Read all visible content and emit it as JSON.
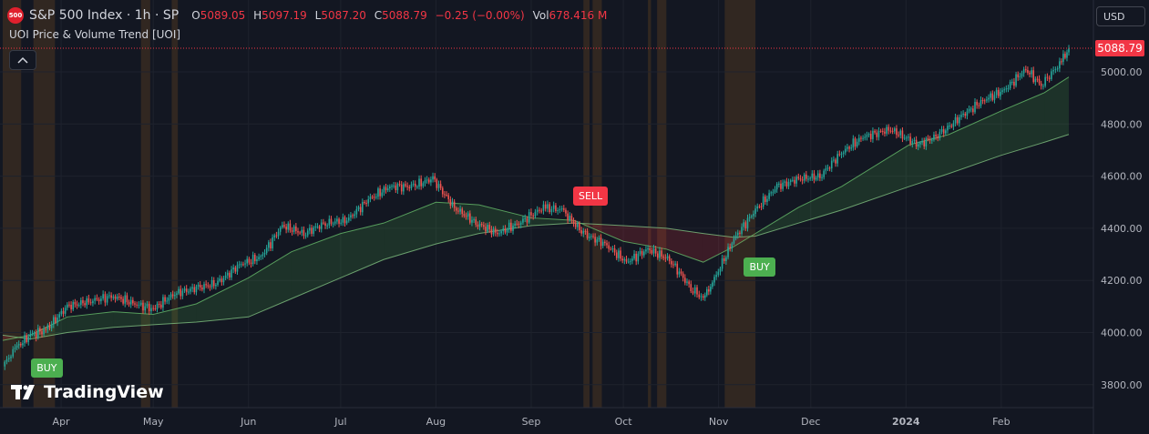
{
  "header": {
    "exchange_badge": "500",
    "symbol": "S&P 500 Index · 1h · SP",
    "ohlc": [
      {
        "k": "O",
        "v": "5089.05"
      },
      {
        "k": "H",
        "v": "5097.19"
      },
      {
        "k": "L",
        "v": "5087.20"
      },
      {
        "k": "C",
        "v": "5088.79"
      }
    ],
    "change": "−0.25 (−0.00%)",
    "vol_label": "Vol",
    "vol_value": "678.416 M",
    "indicator": "UOI Price & Volume Trend [UOI]",
    "collapse_icon": "chevron-up-icon"
  },
  "currency": "USD",
  "last_price": "5088.79",
  "branding": "TradingView",
  "colors": {
    "background": "#131722",
    "up": "#26a69a",
    "down": "#ef5350",
    "bull_band": "#4caf50",
    "bear_band": "#f23645",
    "highlight": "#4a3520",
    "buy": "#4caf50",
    "sell": "#f23645"
  },
  "chart_data": {
    "type": "line",
    "ylim": [
      3720,
      5120
    ],
    "y_ticks": [
      "5000.00",
      "4800.00",
      "4600.00",
      "4400.00",
      "4200.00",
      "4000.00",
      "3800.00"
    ],
    "x_range": [
      "2023-03-13",
      "2024-02-23"
    ],
    "x_ticks": [
      {
        "date": "2023-04-01",
        "label": "Apr"
      },
      {
        "date": "2023-05-01",
        "label": "May"
      },
      {
        "date": "2023-06-01",
        "label": "Jun"
      },
      {
        "date": "2023-07-01",
        "label": "Jul"
      },
      {
        "date": "2023-08-01",
        "label": "Aug"
      },
      {
        "date": "2023-09-01",
        "label": "Sep"
      },
      {
        "date": "2023-10-01",
        "label": "Oct"
      },
      {
        "date": "2023-11-01",
        "label": "Nov"
      },
      {
        "date": "2023-12-01",
        "label": "Dec"
      },
      {
        "date": "2024-01-01",
        "label": "2024"
      },
      {
        "date": "2024-02-01",
        "label": "Feb"
      }
    ],
    "price": {
      "dates": [
        "2023-03-13",
        "2023-03-17",
        "2023-03-22",
        "2023-03-27",
        "2023-04-03",
        "2023-04-10",
        "2023-04-18",
        "2023-04-25",
        "2023-05-01",
        "2023-05-08",
        "2023-05-15",
        "2023-05-22",
        "2023-05-29",
        "2023-06-05",
        "2023-06-12",
        "2023-06-19",
        "2023-06-26",
        "2023-07-03",
        "2023-07-10",
        "2023-07-17",
        "2023-07-24",
        "2023-07-31",
        "2023-08-07",
        "2023-08-14",
        "2023-08-21",
        "2023-08-28",
        "2023-09-05",
        "2023-09-11",
        "2023-09-18",
        "2023-09-25",
        "2023-10-02",
        "2023-10-09",
        "2023-10-16",
        "2023-10-23",
        "2023-10-27",
        "2023-10-30",
        "2023-11-06",
        "2023-11-13",
        "2023-11-20",
        "2023-11-27",
        "2023-12-04",
        "2023-12-11",
        "2023-12-18",
        "2023-12-27",
        "2024-01-05",
        "2024-01-12",
        "2024-01-19",
        "2024-01-26",
        "2024-02-02",
        "2024-02-09",
        "2024-02-14",
        "2024-02-20",
        "2024-02-23"
      ],
      "close": [
        3870,
        3940,
        3990,
        4010,
        4100,
        4120,
        4140,
        4110,
        4090,
        4150,
        4170,
        4190,
        4260,
        4290,
        4410,
        4380,
        4420,
        4430,
        4510,
        4560,
        4560,
        4590,
        4480,
        4420,
        4380,
        4420,
        4480,
        4470,
        4380,
        4340,
        4270,
        4320,
        4280,
        4170,
        4130,
        4190,
        4360,
        4470,
        4560,
        4590,
        4600,
        4690,
        4750,
        4780,
        4720,
        4760,
        4830,
        4890,
        4930,
        5010,
        4950,
        5030,
        5088
      ]
    },
    "trend_band": {
      "dates": [
        "2023-03-13",
        "2023-03-22",
        "2023-04-03",
        "2023-04-18",
        "2023-05-01",
        "2023-05-15",
        "2023-06-01",
        "2023-06-15",
        "2023-07-01",
        "2023-07-15",
        "2023-08-01",
        "2023-08-15",
        "2023-09-01",
        "2023-09-15",
        "2023-10-01",
        "2023-10-15",
        "2023-10-27",
        "2023-11-06",
        "2023-11-13",
        "2023-11-27",
        "2023-12-11",
        "2024-01-02",
        "2024-01-15",
        "2024-02-01",
        "2024-02-15",
        "2024-02-23"
      ],
      "fast": [
        3970,
        3990,
        4060,
        4080,
        4070,
        4110,
        4210,
        4310,
        4380,
        4420,
        4500,
        4490,
        4440,
        4430,
        4350,
        4320,
        4270,
        4330,
        4380,
        4480,
        4560,
        4720,
        4760,
        4850,
        4920,
        4980
      ],
      "slow": [
        3990,
        3975,
        4000,
        4020,
        4030,
        4040,
        4060,
        4130,
        4210,
        4280,
        4340,
        4380,
        4410,
        4420,
        4410,
        4400,
        4380,
        4365,
        4370,
        4420,
        4470,
        4560,
        4610,
        4680,
        4730,
        4760
      ]
    },
    "highlight_zones": [
      [
        "2023-03-13",
        "2023-03-19"
      ],
      [
        "2023-03-23",
        "2023-03-30"
      ],
      [
        "2023-04-27",
        "2023-04-30"
      ],
      [
        "2023-05-07",
        "2023-05-09"
      ],
      [
        "2023-09-18",
        "2023-09-20"
      ],
      [
        "2023-09-21",
        "2023-09-24"
      ],
      [
        "2023-10-09",
        "2023-10-10"
      ],
      [
        "2023-10-12",
        "2023-10-15"
      ],
      [
        "2023-11-03",
        "2023-11-13"
      ]
    ],
    "signals": [
      {
        "type": "BUY",
        "date": "2023-03-27",
        "price": 3965
      },
      {
        "type": "SELL",
        "date": "2023-09-20",
        "price": 4440
      },
      {
        "type": "BUY",
        "date": "2023-11-14",
        "price": 4350
      }
    ]
  }
}
